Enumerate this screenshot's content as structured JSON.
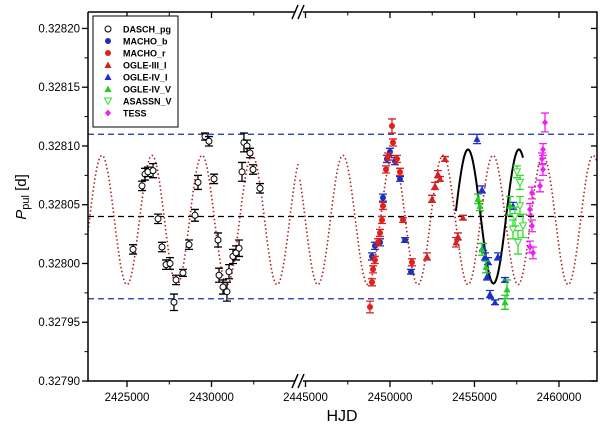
{
  "chart_data": {
    "type": "scatter",
    "xlabel": "HJD",
    "ylabel_main": "P",
    "ylabel_sub": "pul",
    "ylabel_unit": " [d]",
    "ylim": [
      0.3279,
      0.328214
    ],
    "x_segments": [
      [
        2422692,
        2435118
      ],
      [
        2444675,
        2462250
      ]
    ],
    "x_ticks": [
      "2425000",
      "2430000",
      "2445000",
      "2450000",
      "2455000",
      "2460000"
    ],
    "y_ticks": [
      "0.32790",
      "0.32795",
      "0.32800",
      "0.32805",
      "0.32810",
      "0.32815",
      "0.32820"
    ],
    "axis_break": true,
    "grid": false,
    "legend_position": "top-left",
    "reference_lines": {
      "mean": 0.32804,
      "upper": 0.32811,
      "lower": 0.32797
    },
    "model_dotted": {
      "mean": 0.328037,
      "amplitude": 5.5e-05,
      "period": 2962,
      "epoch_max": 2453136
    },
    "model_solid": {
      "mean": 0.32804,
      "amplitude": 5.7e-05,
      "period": 3015,
      "epoch_max": 2454615,
      "range": [
        2453900,
        2457870
      ]
    },
    "series": [
      {
        "name": "DASCH_pg",
        "marker": "circle-open",
        "color": "#000000",
        "points": [
          [
            2425355,
            0.328012,
            4e-06
          ],
          [
            2425890,
            0.328066,
            4e-06
          ],
          [
            2426065,
            0.328076,
            5e-06
          ],
          [
            2426240,
            0.328078,
            4e-06
          ],
          [
            2426540,
            0.328079,
            6e-06
          ],
          [
            2426835,
            0.328038,
            4e-06
          ],
          [
            2427070,
            0.328014,
            4e-06
          ],
          [
            2427310,
            0.327999,
            4e-06
          ],
          [
            2427545,
            0.328,
            5e-06
          ],
          [
            2427780,
            0.327967,
            7e-06
          ],
          [
            2427900,
            0.327986,
            4e-06
          ],
          [
            2428310,
            0.327992,
            3e-06
          ],
          [
            2428670,
            0.328016,
            4e-06
          ],
          [
            2429020,
            0.328041,
            5e-06
          ],
          [
            2429200,
            0.328069,
            6e-06
          ],
          [
            2429615,
            0.328108,
            3e-06
          ],
          [
            2429850,
            0.328104,
            4e-06
          ],
          [
            2430150,
            0.328072,
            4e-06
          ],
          [
            2430385,
            0.32802,
            6e-06
          ],
          [
            2430445,
            0.32799,
            6e-06
          ],
          [
            2430680,
            0.32798,
            6e-06
          ],
          [
            2430915,
            0.327976,
            8e-06
          ],
          [
            2431035,
            0.327993,
            6e-06
          ],
          [
            2431270,
            0.328006,
            6e-06
          ],
          [
            2431450,
            0.328009,
            6e-06
          ],
          [
            2431630,
            0.328013,
            7e-06
          ],
          [
            2431805,
            0.328078,
            8e-06
          ],
          [
            2431920,
            0.328103,
            8e-06
          ],
          [
            2432100,
            0.3281,
            5e-06
          ],
          [
            2432280,
            0.328094,
            4e-06
          ],
          [
            2432455,
            0.32808,
            4e-06
          ],
          [
            2432870,
            0.328064,
            4e-06
          ]
        ]
      },
      {
        "name": "MACHO_b",
        "marker": "circle",
        "color": "#1c2fb8",
        "points": [
          [
            2448935,
            0.328006,
            3e-06
          ],
          [
            2449110,
            0.328015,
            3e-06
          ],
          [
            2449410,
            0.328018,
            3e-06
          ],
          [
            2449586,
            0.328056,
            3e-06
          ],
          [
            2449822,
            0.328089,
            3e-06
          ],
          [
            2450000,
            0.328095,
            3e-06
          ],
          [
            2450296,
            0.328087,
            3e-06
          ],
          [
            2450592,
            0.328072,
            2e-06
          ],
          [
            2450888,
            0.32802,
            2e-06
          ],
          [
            2451243,
            0.327993,
            2e-06
          ]
        ]
      },
      {
        "name": "MACHO_r",
        "marker": "circle",
        "color": "#e0201c",
        "points": [
          [
            2448817,
            0.327963,
            5e-06
          ],
          [
            2448935,
            0.327984,
            3e-06
          ],
          [
            2448995,
            0.327995,
            3e-06
          ],
          [
            2449110,
            0.328003,
            3e-06
          ],
          [
            2449290,
            0.328018,
            3e-06
          ],
          [
            2449410,
            0.328026,
            3e-06
          ],
          [
            2449527,
            0.328037,
            3e-06
          ],
          [
            2449586,
            0.328049,
            3e-06
          ],
          [
            2449763,
            0.32808,
            3e-06
          ],
          [
            2449882,
            0.328091,
            3e-06
          ],
          [
            2450118,
            0.328117,
            6e-06
          ],
          [
            2450178,
            0.328103,
            3e-06
          ],
          [
            2450414,
            0.328089,
            3e-06
          ],
          [
            2450592,
            0.328078,
            3e-06
          ],
          [
            2450770,
            0.328037,
            2e-06
          ],
          [
            2451300,
            0.328001,
            3e-06
          ]
        ]
      },
      {
        "name": "OGLE-III_I",
        "marker": "triangle",
        "color": "#d42020",
        "points": [
          [
            2452190,
            0.328006,
            3e-06
          ],
          [
            2452485,
            0.328055,
            3e-06
          ],
          [
            2452663,
            0.328066,
            3e-06
          ],
          [
            2452840,
            0.328076,
            3e-06
          ],
          [
            2452960,
            0.328072,
            2e-06
          ],
          [
            2453254,
            0.328089,
            2e-06
          ],
          [
            2453905,
            0.328018,
            4e-06
          ],
          [
            2454024,
            0.328023,
            3e-06
          ],
          [
            2454320,
            0.328039,
            2e-06
          ]
        ]
      },
      {
        "name": "OGLE-IV_I",
        "marker": "triangle",
        "color": "#1c2fc8",
        "points": [
          [
            2455148,
            0.328106,
            4e-06
          ],
          [
            2455444,
            0.328063,
            3e-06
          ],
          [
            2455503,
            0.328014,
            3e-06
          ],
          [
            2455621,
            0.328006,
            3e-06
          ],
          [
            2455740,
            0.327989,
            3e-06
          ],
          [
            2455800,
            0.328002,
            3e-06
          ],
          [
            2455917,
            0.327974,
            3e-06
          ],
          [
            2456213,
            0.327967,
            2e-06
          ],
          [
            2456390,
            0.328006,
            3e-06
          ],
          [
            2456805,
            0.327986,
            2e-06
          ],
          [
            2457278,
            0.328049,
            3e-06
          ]
        ]
      },
      {
        "name": "OGLE-IV_V",
        "marker": "triangle",
        "color": "#22cc22",
        "points": [
          [
            2455207,
            0.328055,
            4e-06
          ],
          [
            2455325,
            0.328049,
            4e-06
          ],
          [
            2455444,
            0.328012,
            5e-06
          ],
          [
            2455680,
            0.327997,
            5e-06
          ],
          [
            2456805,
            0.327967,
            6e-06
          ],
          [
            2456923,
            0.327978,
            8e-06
          ],
          [
            2457100,
            0.328049,
            8e-06
          ]
        ]
      },
      {
        "name": "ASASSN_V",
        "marker": "triangle-down-open",
        "color": "#33dd33",
        "points": [
          [
            2457514,
            0.328078,
            5e-06
          ],
          [
            2457692,
            0.328069,
            6e-06
          ],
          [
            2457692,
            0.328049,
            8e-06
          ],
          [
            2457396,
            0.32804,
            8e-06
          ],
          [
            2457870,
            0.328032,
            1e-05
          ],
          [
            2457278,
            0.328029,
            8e-06
          ],
          [
            2457574,
            0.328018,
            1e-05
          ]
        ]
      },
      {
        "name": "TESS",
        "marker": "diamond",
        "color": "#ee22ee",
        "points": [
          [
            2458402,
            0.32806,
            5e-06
          ],
          [
            2458284,
            0.328046,
            5e-06
          ],
          [
            2458402,
            0.328032,
            5e-06
          ],
          [
            2458284,
            0.328014,
            5e-06
          ],
          [
            2458462,
            0.328009,
            5e-06
          ],
          [
            2458876,
            0.328066,
            5e-06
          ],
          [
            2458994,
            0.328089,
            5e-06
          ],
          [
            2459053,
            0.328097,
            5e-06
          ],
          [
            2459172,
            0.32812,
            8e-06
          ],
          [
            2459053,
            0.32808,
            5e-06
          ]
        ]
      }
    ]
  }
}
